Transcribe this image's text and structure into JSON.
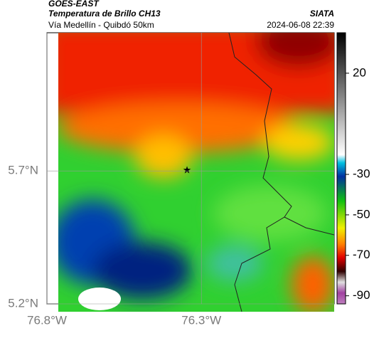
{
  "header": {
    "title": "GOES-EAST",
    "subtitle": "Temperatura de Brillo CH13",
    "source": "SIATA",
    "route": "Vía Medellín - Quibdó 50km",
    "datetime": "2024-06-08 22:39"
  },
  "map": {
    "xlim": [
      -76.8,
      -75.87
    ],
    "ylim": [
      5.2,
      6.22
    ],
    "xticks": [
      {
        "value": -76.8,
        "label": "76.8°W"
      },
      {
        "value": -76.3,
        "label": "76.3°W"
      }
    ],
    "yticks": [
      {
        "value": 5.2,
        "label": "5.2°N"
      },
      {
        "value": 5.7,
        "label": "5.7°N"
      }
    ],
    "colorbar": {
      "clim": [
        -94,
        40
      ],
      "ticks": [
        20,
        -30,
        -50,
        -70,
        -90
      ]
    }
  }
}
